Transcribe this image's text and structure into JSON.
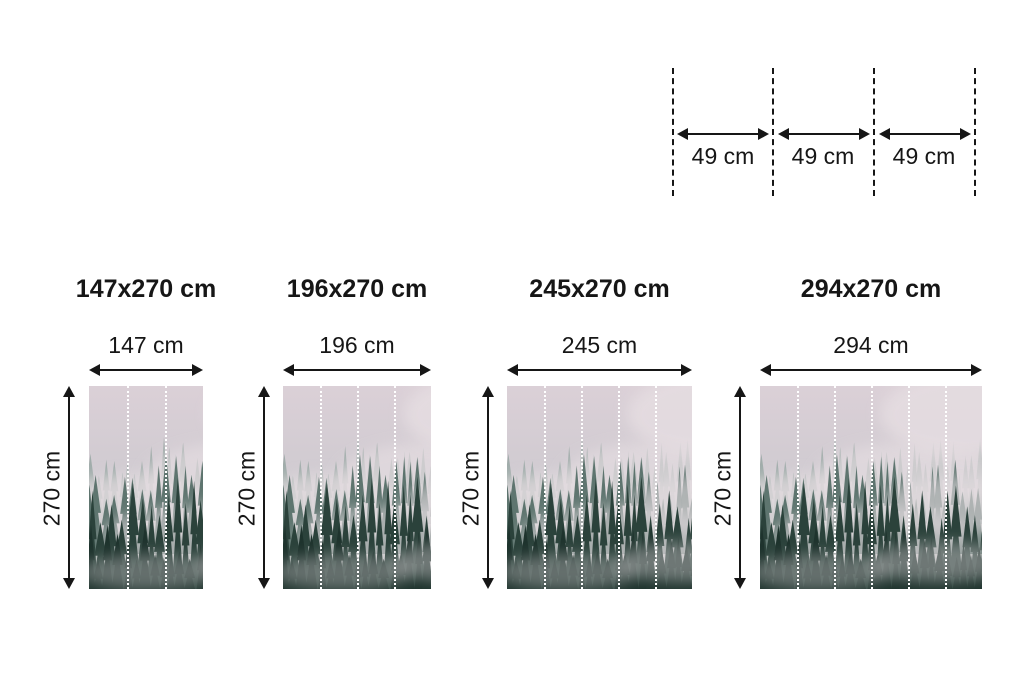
{
  "panel_guide": {
    "segment_labels": [
      "49 cm",
      "49 cm",
      "49 cm"
    ]
  },
  "variants": [
    {
      "title": "147x270 cm",
      "width_label": "147 cm",
      "height_label": "270 cm",
      "panels": 3
    },
    {
      "title": "196x270 cm",
      "width_label": "196 cm",
      "height_label": "270 cm",
      "panels": 4
    },
    {
      "title": "245x270 cm",
      "width_label": "245 cm",
      "height_label": "270 cm",
      "panels": 5
    },
    {
      "title": "294x270 cm",
      "width_label": "294 cm",
      "height_label": "270 cm",
      "panels": 6
    }
  ],
  "colors": {
    "text": "#161616",
    "arrow": "#161616",
    "panel_divider": "#ffffff",
    "sky_top": "#dbd0d7",
    "sky_mid": "#d0cbd1",
    "sky_low": "#b7bdbb",
    "fog": "#e6dee2",
    "tree_far": "#8fa19c",
    "tree_mid": "#546d66",
    "tree_near": "#2b423b",
    "tree_deep": "#1e332d"
  }
}
